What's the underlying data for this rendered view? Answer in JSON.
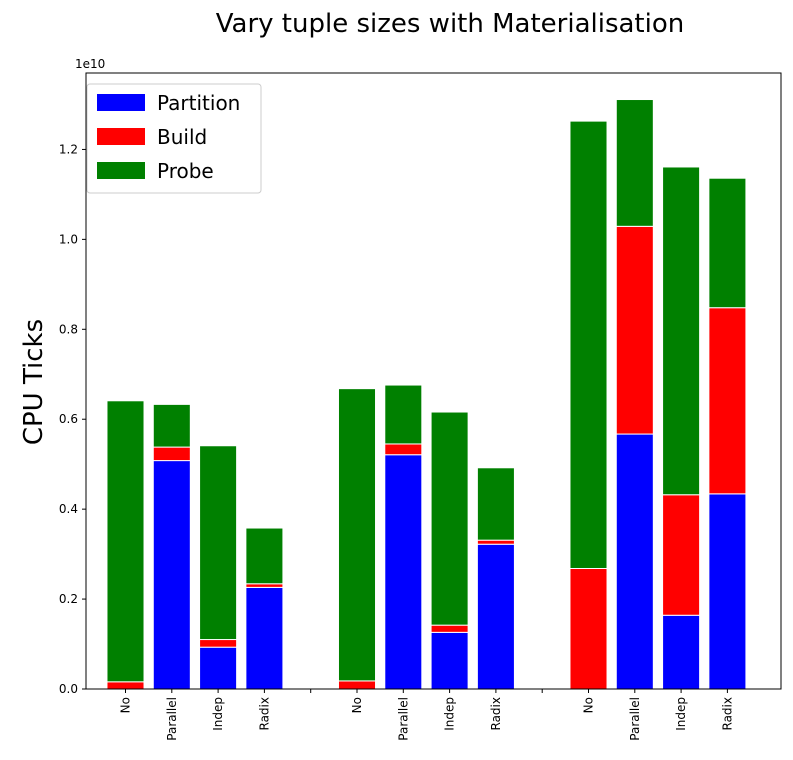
{
  "chart_data": {
    "type": "bar",
    "stacked": true,
    "title": "Vary tuple sizes with Materialisation",
    "ylabel": "CPU Ticks",
    "xlabel": "",
    "y_offset_label": "1e10",
    "ylim": [
      0,
      1.37
    ],
    "yticks": [
      0.0,
      0.2,
      0.4,
      0.6,
      0.8,
      1.0,
      1.2
    ],
    "ytick_labels": [
      "0.0",
      "0.2",
      "0.4",
      "0.6",
      "0.8",
      "1.0",
      "1.2"
    ],
    "legend_position": "top-left",
    "categories": [
      "No",
      "Parallel",
      "Indep",
      "Radix",
      "No",
      "Parallel",
      "Indep",
      "Radix",
      "No",
      "Parallel",
      "Indep",
      "Radix"
    ],
    "series": [
      {
        "name": "Partition",
        "color": "#0000ff",
        "values": [
          0.0,
          0.508,
          0.093,
          0.226,
          0.0,
          0.521,
          0.126,
          0.322,
          0.0,
          0.567,
          0.164,
          0.434
        ]
      },
      {
        "name": "Build",
        "color": "#ff0000",
        "values": [
          0.016,
          0.03,
          0.017,
          0.008,
          0.018,
          0.024,
          0.016,
          0.009,
          0.268,
          0.462,
          0.268,
          0.414
        ]
      },
      {
        "name": "Probe",
        "color": "#008000",
        "values": [
          0.625,
          0.095,
          0.431,
          0.124,
          0.65,
          0.131,
          0.474,
          0.161,
          0.995,
          0.282,
          0.729,
          0.288
        ]
      }
    ]
  }
}
